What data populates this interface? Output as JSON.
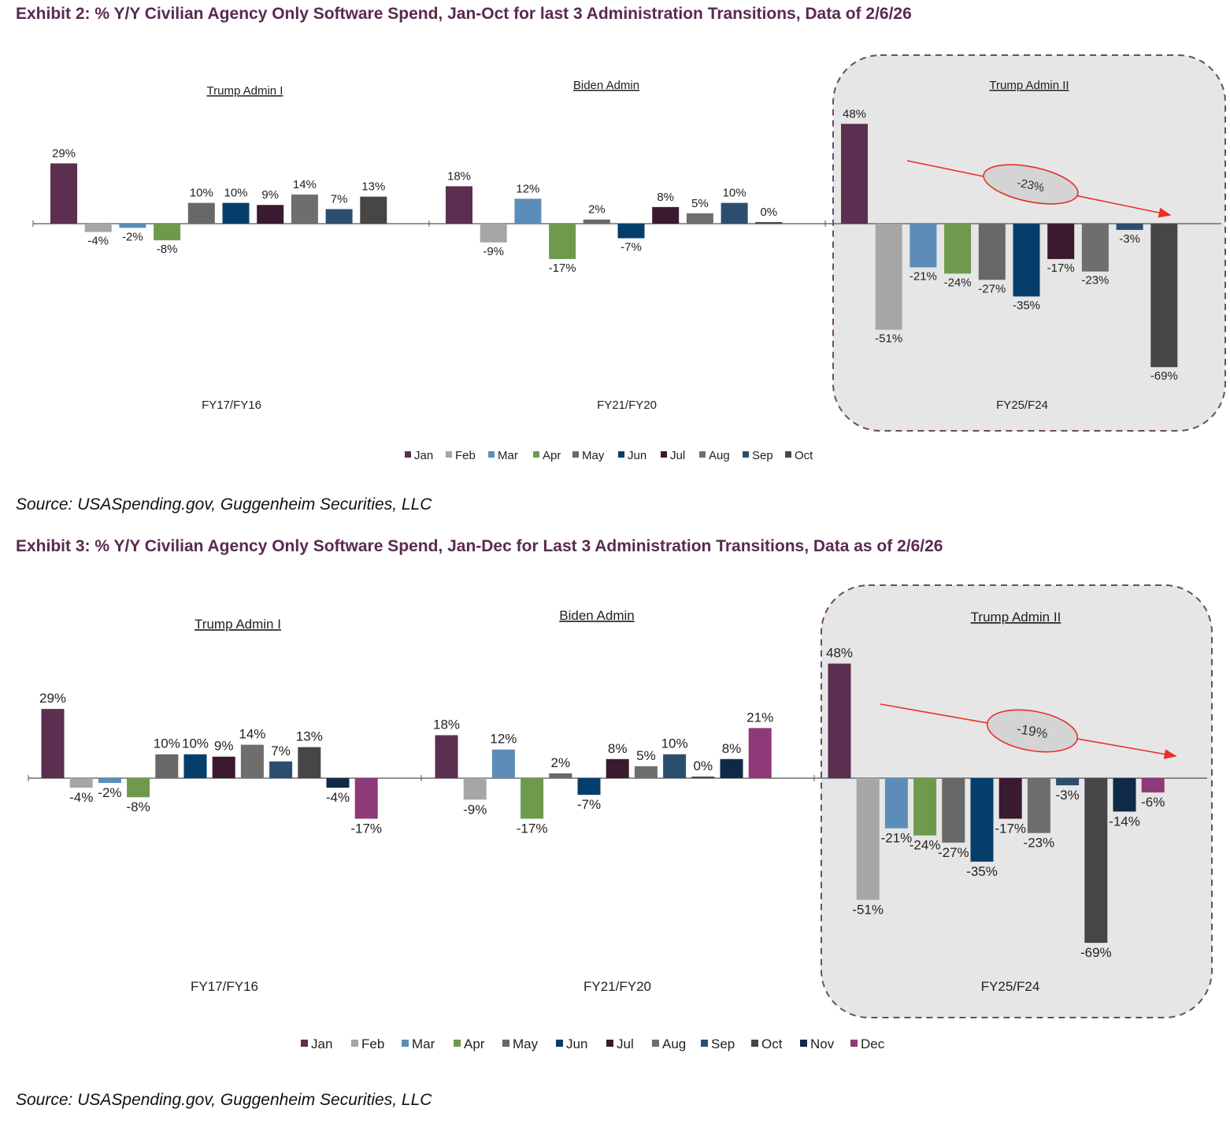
{
  "exhibit2": {
    "title": "Exhibit 2: % Y/Y Civilian Agency Only Software Spend, Jan-Oct for last 3 Administration Transitions, Data of 2/6/26",
    "source": "Source: USASpending.gov, Guggenheim Securities, LLC"
  },
  "exhibit3": {
    "title": "Exhibit 3: % Y/Y Civilian Agency Only Software Spend, Jan-Dec for Last 3 Administration Transitions, Data as of 2/6/26",
    "source": "Source: USASpending.gov, Guggenheim Securities, LLC"
  },
  "colors": {
    "Jan": "#5c2e50",
    "Feb": "#a6a6a6",
    "Mar": "#5b8db8",
    "Apr": "#6f9a4d",
    "May": "#686868",
    "Jun": "#053e6b",
    "Jul": "#3a1a2e",
    "Aug": "#6e6e6e",
    "Sep": "#2c4e6e",
    "Oct": "#464646",
    "Nov": "#0f2a47",
    "Dec": "#8e3a78",
    "highlight_fill": "#e6e6e6",
    "highlight_border": "#6e4a66",
    "trend": "#e8302a",
    "trend_ellipse_fill": "#d4d4d4"
  },
  "chart_data": [
    {
      "type": "bar",
      "id": "exhibit2",
      "title": "Exhibit 2: % Y/Y Civilian Agency Only Software Spend, Jan-Oct for last 3 Administration Transitions, Data of 2/6/26",
      "series_names": [
        "Jan",
        "Feb",
        "Mar",
        "Apr",
        "May",
        "Jun",
        "Jul",
        "Aug",
        "Sep",
        "Oct"
      ],
      "unit": "%",
      "ylim": [
        -69,
        48
      ],
      "legend_position": "bottom",
      "groups": [
        {
          "category": "FY17/FY16",
          "admin": "Trump Admin I",
          "values": [
            29,
            -4,
            -2,
            -8,
            10,
            10,
            9,
            14,
            7,
            13
          ],
          "highlight": false
        },
        {
          "category": "FY21/FY20",
          "admin": "Biden Admin",
          "values": [
            18,
            -9,
            12,
            -17,
            2,
            -7,
            8,
            5,
            10,
            0
          ],
          "highlight": false
        },
        {
          "category": "FY25/F24",
          "admin": "Trump Admin II",
          "values": [
            48,
            -51,
            -21,
            -24,
            -27,
            -35,
            -17,
            -23,
            -3,
            -69
          ],
          "highlight": true,
          "trend_label": "-23%"
        }
      ]
    },
    {
      "type": "bar",
      "id": "exhibit3",
      "title": "Exhibit 3: % Y/Y Civilian Agency Only Software Spend, Jan-Dec for Last 3 Administration Transitions, Data as of 2/6/26",
      "series_names": [
        "Jan",
        "Feb",
        "Mar",
        "Apr",
        "May",
        "Jun",
        "Jul",
        "Aug",
        "Sep",
        "Oct",
        "Nov",
        "Dec"
      ],
      "unit": "%",
      "ylim": [
        -69,
        48
      ],
      "legend_position": "bottom",
      "groups": [
        {
          "category": "FY17/FY16",
          "admin": "Trump Admin I",
          "values": [
            29,
            -4,
            -2,
            -8,
            10,
            10,
            9,
            14,
            7,
            13,
            -4,
            -17
          ],
          "highlight": false
        },
        {
          "category": "FY21/FY20",
          "admin": "Biden Admin",
          "values": [
            18,
            -9,
            12,
            -17,
            2,
            -7,
            8,
            5,
            10,
            0,
            8,
            21
          ],
          "highlight": false
        },
        {
          "category": "FY25/F24",
          "admin": "Trump Admin II",
          "values": [
            48,
            -51,
            -21,
            -24,
            -27,
            -35,
            -17,
            -23,
            -3,
            -69,
            -14,
            -6
          ],
          "highlight": true,
          "trend_label": "-19%"
        }
      ]
    }
  ]
}
